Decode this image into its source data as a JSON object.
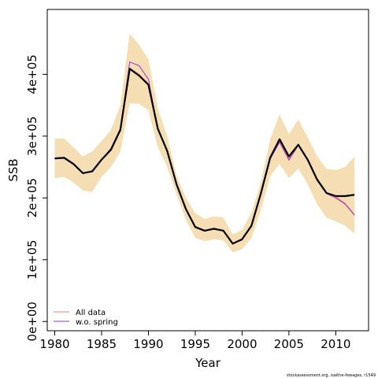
{
  "chart_data": {
    "type": "line",
    "title": "",
    "xlabel": "Year",
    "ylabel": "SSB",
    "xlim": [
      1979.2,
      2013.5
    ],
    "ylim": [
      -15000,
      505000
    ],
    "x_ticks": [
      1980,
      1985,
      1990,
      1995,
      2000,
      2005,
      2010
    ],
    "x_tick_labels": [
      "1980",
      "1985",
      "1990",
      "1995",
      "2000",
      "2005",
      "2010"
    ],
    "y_ticks": [
      0,
      100000,
      200000,
      300000,
      400000
    ],
    "y_tick_labels": [
      "0e+00",
      "1e+05",
      "2e+05",
      "3e+05",
      "4e+05"
    ],
    "grid": false,
    "legend_position": "bottom-left",
    "x": [
      1980,
      1981,
      1982,
      1983,
      1984,
      1985,
      1986,
      1987,
      1988,
      1989,
      1990,
      1991,
      1992,
      1993,
      1994,
      1995,
      1996,
      1997,
      1998,
      1999,
      2000,
      2001,
      2002,
      2003,
      2004,
      2005,
      2006,
      2007,
      2008,
      2009,
      2010,
      2011,
      2012
    ],
    "band": {
      "color": "#f5deb3",
      "lower": [
        232000,
        234000,
        225000,
        212000,
        210000,
        234000,
        250000,
        275000,
        353000,
        352000,
        342000,
        282000,
        250000,
        205000,
        165000,
        135000,
        130000,
        133000,
        131000,
        112000,
        117000,
        135000,
        180000,
        235000,
        255000,
        232000,
        248000,
        222000,
        190000,
        168000,
        162000,
        155000,
        142000
      ],
      "upper": [
        296000,
        296000,
        282000,
        267000,
        275000,
        292000,
        310000,
        350000,
        466000,
        448000,
        424000,
        345000,
        300000,
        236000,
        200000,
        175000,
        166000,
        170000,
        168000,
        141000,
        148000,
        176000,
        225000,
        295000,
        335000,
        303000,
        327000,
        298000,
        268000,
        247000,
        245000,
        250000,
        267000
      ]
    },
    "series": [
      {
        "name": "All data",
        "color": "#f08080",
        "values": [
          263000,
          264000,
          254000,
          240000,
          242000,
          262000,
          280000,
          312000,
          410000,
          400000,
          385000,
          312000,
          277000,
          222000,
          182000,
          152000,
          146000,
          150000,
          147000,
          126000,
          132000,
          155000,
          205000,
          263000,
          292000,
          263000,
          285000,
          260000,
          228000,
          208000,
          202000,
          191000,
          173000
        ]
      },
      {
        "name": "w.o. spring",
        "color": "#9933cc",
        "values": [
          263000,
          264000,
          254000,
          240000,
          242000,
          262000,
          280000,
          312000,
          420000,
          414000,
          392000,
          312000,
          277000,
          222000,
          182000,
          152000,
          146000,
          150000,
          147000,
          126000,
          132000,
          155000,
          205000,
          263000,
          290000,
          261000,
          285000,
          260000,
          228000,
          207000,
          200000,
          190000,
          172000
        ]
      },
      {
        "color": "#000000",
        "values": [
          264000,
          265000,
          255000,
          240000,
          243000,
          262000,
          278000,
          310000,
          409000,
          398000,
          383000,
          312000,
          276000,
          222000,
          182000,
          153000,
          147000,
          150000,
          147000,
          126000,
          133000,
          155000,
          207000,
          265000,
          295000,
          267000,
          286000,
          262000,
          230000,
          208000,
          203000,
          203000,
          205000
        ]
      }
    ],
    "annotation": "stockassessment.org, isaithe-fewages, r1549"
  }
}
